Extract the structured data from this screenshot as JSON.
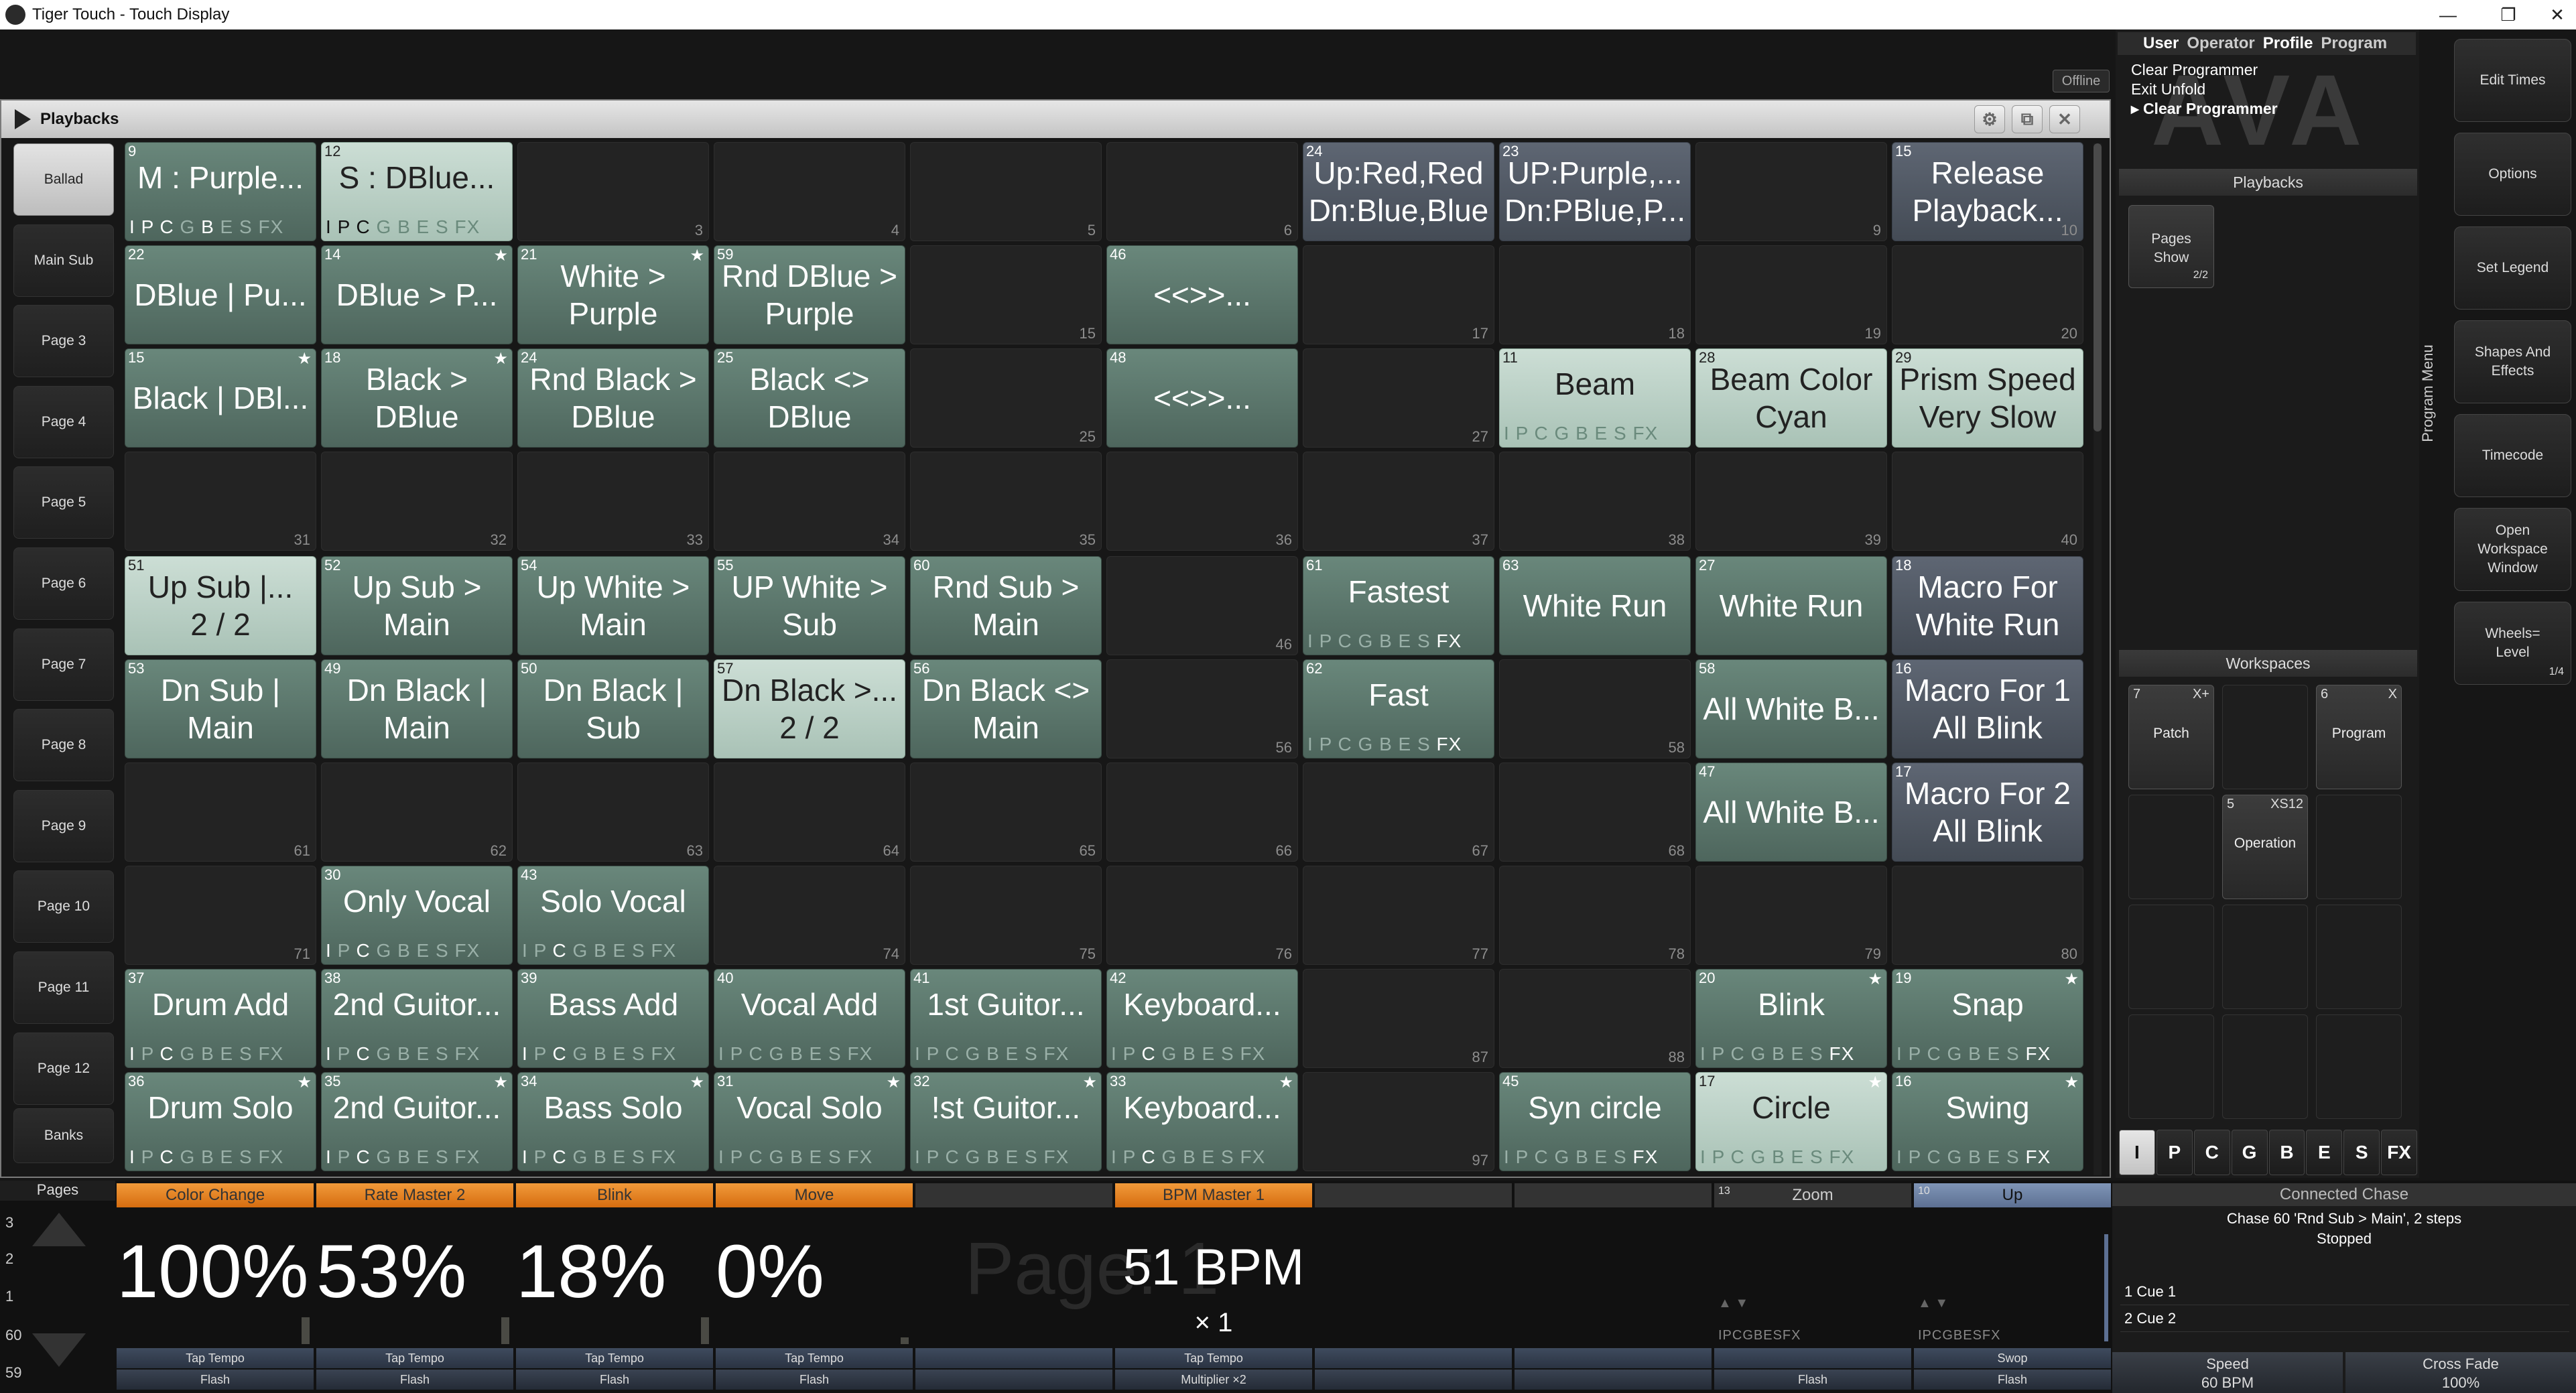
{
  "title": "Tiger Touch - Touch Display",
  "offline": "Offline",
  "playbacks_title": "Playbacks",
  "pages": [
    "Ballad",
    "Main Sub",
    "Page 3",
    "Page 4",
    "Page 5",
    "Page 6",
    "Page 7",
    "Page 8",
    "Page 9",
    "Page 10",
    "Page 11",
    "Page 12",
    "Banks"
  ],
  "rows": [
    [
      {
        "t": "g",
        "n": "9",
        "l": "M : Purple...",
        "i": "IPCGB",
        "h": "IPCB",
        "fx": 0
      },
      {
        "t": "l",
        "n": "12",
        "l": "S : DBlue...",
        "i": "IPCGB",
        "h": "IPC",
        "fx": 0
      },
      {
        "t": "e",
        "f": "3"
      },
      {
        "t": "e",
        "f": "4"
      },
      {
        "t": "e",
        "f": "5"
      },
      {
        "t": "e",
        "f": "6"
      },
      {
        "t": "y",
        "n": "24",
        "l": "Up:Red,Red\nDn:Blue,Blue"
      },
      {
        "t": "y",
        "n": "23",
        "l": "UP:Purple,...\nDn:PBlue,P..."
      },
      {
        "t": "e",
        "f": "9"
      },
      {
        "t": "y",
        "n": "15",
        "l": "Release\nPlayback...",
        "f": "10"
      }
    ],
    [
      {
        "t": "g",
        "n": "22",
        "l": "DBlue | Pu..."
      },
      {
        "t": "g",
        "n": "14",
        "l": "DBlue > P...",
        "s": 1
      },
      {
        "t": "g",
        "n": "21",
        "l": "White >\nPurple",
        "s": 1
      },
      {
        "t": "g",
        "n": "59",
        "l": "Rnd DBlue >\nPurple"
      },
      {
        "t": "e",
        "f": "15"
      },
      {
        "t": "g",
        "n": "46",
        "l": "<<>>..."
      },
      {
        "t": "e",
        "f": "17"
      },
      {
        "t": "e",
        "f": "18"
      },
      {
        "t": "e",
        "f": "19"
      },
      {
        "t": "e",
        "f": "20"
      }
    ],
    [
      {
        "t": "g",
        "n": "15",
        "l": "Black | DBl...",
        "s": 1
      },
      {
        "t": "g",
        "n": "18",
        "l": "Black >\nDBlue",
        "s": 1
      },
      {
        "t": "g",
        "n": "24",
        "l": "Rnd Black >\nDBlue"
      },
      {
        "t": "g",
        "n": "25",
        "l": "Black <>\nDBlue"
      },
      {
        "t": "e",
        "f": "25"
      },
      {
        "t": "g",
        "n": "48",
        "l": "<<>>..."
      },
      {
        "t": "e",
        "f": "27"
      },
      {
        "t": "l",
        "n": "11",
        "l": "Beam",
        "i": "IPCGB",
        "h": "",
        "fx": 0
      },
      {
        "t": "l",
        "n": "28",
        "l": "Beam Color\nCyan"
      },
      {
        "t": "l",
        "n": "29",
        "l": "Prism Speed\nVery Slow"
      }
    ],
    [
      {
        "t": "e",
        "f": "31"
      },
      {
        "t": "e",
        "f": "32"
      },
      {
        "t": "e",
        "f": "33"
      },
      {
        "t": "e",
        "f": "34"
      },
      {
        "t": "e",
        "f": "35"
      },
      {
        "t": "e",
        "f": "36"
      },
      {
        "t": "e",
        "f": "37"
      },
      {
        "t": "e",
        "f": "38"
      },
      {
        "t": "e",
        "f": "39"
      },
      {
        "t": "e",
        "f": "40"
      }
    ],
    [
      {
        "t": "l",
        "n": "51",
        "l": "Up Sub |...\n2 / 2"
      },
      {
        "t": "g",
        "n": "52",
        "l": "Up  Sub >\nMain"
      },
      {
        "t": "g",
        "n": "54",
        "l": "Up White >\nMain"
      },
      {
        "t": "g",
        "n": "55",
        "l": "UP White >\nSub"
      },
      {
        "t": "g",
        "n": "60",
        "l": "Rnd Sub >\nMain"
      },
      {
        "t": "e",
        "f": "46"
      },
      {
        "t": "g",
        "n": "61",
        "l": "Fastest",
        "i": "IPCGB",
        "h": "",
        "fx": 1
      },
      {
        "t": "g",
        "n": "63",
        "l": "White Run"
      },
      {
        "t": "g",
        "n": "27",
        "l": "White Run"
      },
      {
        "t": "y",
        "n": "18",
        "l": "Macro For\nWhite Run"
      }
    ],
    [
      {
        "t": "g",
        "n": "53",
        "l": "Dn Sub |\nMain"
      },
      {
        "t": "g",
        "n": "49",
        "l": "Dn Black |\nMain"
      },
      {
        "t": "g",
        "n": "50",
        "l": "Dn Black |\nSub"
      },
      {
        "t": "l",
        "n": "57",
        "l": "Dn Black >...\n2 / 2"
      },
      {
        "t": "g",
        "n": "56",
        "l": "Dn Black <>\nMain"
      },
      {
        "t": "e",
        "f": "56"
      },
      {
        "t": "g",
        "n": "62",
        "l": "Fast",
        "i": "IPCGB",
        "h": "",
        "fx": 1
      },
      {
        "t": "e",
        "f": "58"
      },
      {
        "t": "g",
        "n": "58",
        "l": "All White B..."
      },
      {
        "t": "y",
        "n": "16",
        "l": "Macro For 1\nAll Blink"
      }
    ],
    [
      {
        "t": "e",
        "f": "61"
      },
      {
        "t": "e",
        "f": "62"
      },
      {
        "t": "e",
        "f": "63"
      },
      {
        "t": "e",
        "f": "64"
      },
      {
        "t": "e",
        "f": "65"
      },
      {
        "t": "e",
        "f": "66"
      },
      {
        "t": "e",
        "f": "67"
      },
      {
        "t": "e",
        "f": "68"
      },
      {
        "t": "g",
        "n": "47",
        "l": "All White B..."
      },
      {
        "t": "y",
        "n": "17",
        "l": "Macro For 2\nAll Blink"
      }
    ],
    [
      {
        "t": "e",
        "f": "71"
      },
      {
        "t": "g",
        "n": "30",
        "l": "Only Vocal",
        "i": "IPCGB",
        "h": "IC",
        "fx": 0
      },
      {
        "t": "g",
        "n": "43",
        "l": "Solo Vocal",
        "i": "IPCGB",
        "h": "C",
        "fx": 0
      },
      {
        "t": "e",
        "f": "74"
      },
      {
        "t": "e",
        "f": "75"
      },
      {
        "t": "e",
        "f": "76"
      },
      {
        "t": "e",
        "f": "77"
      },
      {
        "t": "e",
        "f": "78"
      },
      {
        "t": "e",
        "f": "79"
      },
      {
        "t": "e",
        "f": "80"
      }
    ],
    [
      {
        "t": "g",
        "n": "37",
        "l": "Drum Add",
        "i": "IPCGB",
        "h": "IC",
        "fx": 0
      },
      {
        "t": "g",
        "n": "38",
        "l": "2nd Guitor...",
        "i": "IPCGB",
        "h": "IC",
        "fx": 0
      },
      {
        "t": "g",
        "n": "39",
        "l": "Bass Add",
        "i": "IPCGB",
        "h": "IC",
        "fx": 0
      },
      {
        "t": "g",
        "n": "40",
        "l": "Vocal Add",
        "i": "IPCGB",
        "h": "",
        "fx": 0
      },
      {
        "t": "g",
        "n": "41",
        "l": "1st Guitor...",
        "i": "IPCGB",
        "h": "",
        "fx": 0
      },
      {
        "t": "g",
        "n": "42",
        "l": "Keyboard...",
        "i": "IPCGB",
        "h": "C",
        "fx": 0
      },
      {
        "t": "e",
        "f": "87"
      },
      {
        "t": "e",
        "f": "88"
      },
      {
        "t": "g",
        "n": "20",
        "l": "Blink",
        "s": 1,
        "i": "IPCGB",
        "h": "",
        "fx": 1
      },
      {
        "t": "g",
        "n": "19",
        "l": "Snap",
        "s": 1,
        "i": "IPCGB",
        "h": "",
        "fx": 1
      }
    ],
    [
      {
        "t": "g",
        "n": "36",
        "l": "Drum Solo",
        "s": 1,
        "i": "IPCGB",
        "h": "IC",
        "fx": 0
      },
      {
        "t": "g",
        "n": "35",
        "l": "2nd Guitor...",
        "s": 1,
        "i": "IPCGB",
        "h": "IC",
        "fx": 0
      },
      {
        "t": "g",
        "n": "34",
        "l": "Bass Solo",
        "s": 1,
        "i": "IPCGB",
        "h": "IC",
        "fx": 0
      },
      {
        "t": "g",
        "n": "31",
        "l": "Vocal Solo",
        "s": 1,
        "i": "IPCGB",
        "h": "",
        "fx": 0
      },
      {
        "t": "g",
        "n": "32",
        "l": "!st Guitor...",
        "s": 1,
        "i": "IPCGB",
        "h": "",
        "fx": 0
      },
      {
        "t": "g",
        "n": "33",
        "l": "Keyboard...",
        "s": 1,
        "i": "IPCGB",
        "h": "C",
        "fx": 0
      },
      {
        "t": "e",
        "f": "97"
      },
      {
        "t": "g",
        "n": "45",
        "l": "Syn circle",
        "i": "IPCGB",
        "h": "",
        "fx": 1
      },
      {
        "t": "l",
        "n": "17",
        "l": "Circle",
        "s": 1,
        "i": "IPCGB",
        "h": "",
        "fx": 1
      },
      {
        "t": "g",
        "n": "16",
        "l": "Swing",
        "s": 1,
        "i": "IPCGB",
        "h": "",
        "fx": 1
      }
    ]
  ],
  "rtabs": [
    "User",
    "Operator",
    "Profile",
    "Program"
  ],
  "menu": [
    "Clear Programmer",
    "Exit Unfold",
    "Clear Programmer"
  ],
  "logo": "AVA",
  "playbacks_section": "Playbacks",
  "pages_show": {
    "label1": "Pages",
    "label2": "Show",
    "count": "2/2"
  },
  "workspaces_section": "Workspaces",
  "workspaces": [
    {
      "n": "7",
      "x": "X+",
      "l": "Patch"
    },
    {
      "n": "6",
      "x": "X",
      "l": "Program"
    },
    {
      "n": "5",
      "x": "XS12",
      "l": "Operation"
    }
  ],
  "attrs": [
    "I",
    "P",
    "C",
    "G",
    "B",
    "E",
    "S",
    "FX"
  ],
  "program_menu": "Program Menu",
  "right_buttons": [
    {
      "l": "Edit Times"
    },
    {
      "l": "Options"
    },
    {
      "l": "Set Legend"
    },
    {
      "l": "Shapes And\nEffects"
    },
    {
      "l": "Timecode"
    },
    {
      "l": "Open\nWorkspace\nWindow"
    },
    {
      "l": "Wheels=\nLevel",
      "c": "1/4"
    }
  ],
  "pages_label": "Pages",
  "page_numbers": [
    "3",
    "2",
    "1",
    "60",
    "59"
  ],
  "faders": [
    {
      "legend": "Color Change",
      "val": "100%",
      "tap": "Tap Tempo",
      "flash": "Flash"
    },
    {
      "legend": "Rate Master 2",
      "val": "53%",
      "tap": "Tap Tempo",
      "flash": "Flash"
    },
    {
      "legend": "Blink",
      "val": "18%",
      "tap": "Tap Tempo",
      "flash": "Flash"
    },
    {
      "legend": "Move",
      "val": "0%",
      "tap": "Tap Tempo",
      "flash": "Flash"
    },
    {
      "legend": "",
      "val": "",
      "tap": "",
      "flash": ""
    },
    {
      "legend": "BPM Master 1",
      "bpm": "51 BPM",
      "mult": "× 1",
      "tap": "Tap Tempo",
      "flash": "Multiplier ×2"
    },
    {
      "legend": "",
      "val": "",
      "tap": "",
      "flash": ""
    },
    {
      "legend": "",
      "val": "",
      "tap": "",
      "flash": ""
    },
    {
      "legend": "Zoom",
      "num": "13",
      "mi": "IPCGBESFX",
      "tap": "",
      "flash": "Flash"
    },
    {
      "legend": "Up",
      "num": "10",
      "mi": "IPCGBESFX",
      "tap": "Swop",
      "flash": "Flash"
    }
  ],
  "page_watermark": "Page: 1",
  "chase": {
    "header": "Connected Chase",
    "line1": "Chase 60 'Rnd Sub > Main', 2 steps",
    "line2": "Stopped",
    "cues": [
      "1  Cue 1",
      "2  Cue 2"
    ],
    "speed_label": "Speed",
    "speed": "60 BPM",
    "fade_label": "Cross Fade",
    "fade": "100%"
  },
  "window_buttons": [
    "—",
    "❐",
    "✕"
  ]
}
